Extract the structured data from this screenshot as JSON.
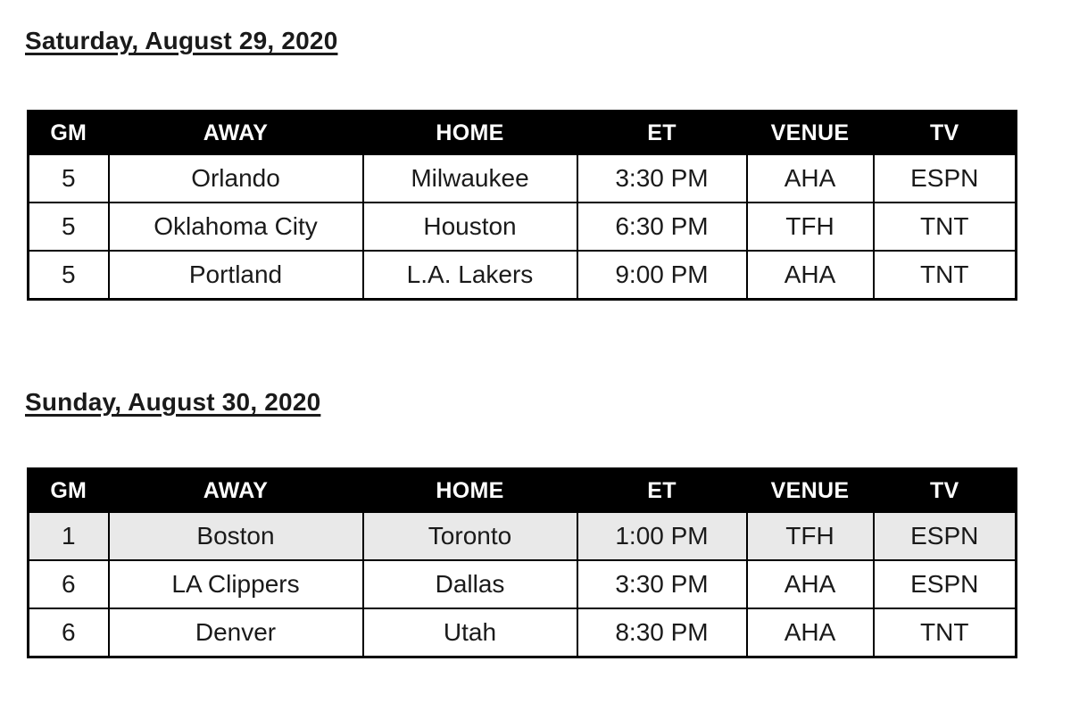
{
  "colors": {
    "page_background": "#ffffff",
    "header_background": "#000000",
    "header_text": "#ffffff",
    "body_text": "#1a1a1a",
    "border": "#000000",
    "highlight_row_background": "#e9e9e9"
  },
  "sections": [
    {
      "heading": "Saturday, August 29, 2020",
      "table": {
        "columns": [
          "GM",
          "AWAY",
          "HOME",
          "ET",
          "VENUE",
          "TV"
        ],
        "rows": [
          {
            "gm": "5",
            "away": "Orlando",
            "home": "Milwaukee",
            "et": "3:30 PM",
            "venue": "AHA",
            "tv": "ESPN",
            "highlight": false
          },
          {
            "gm": "5",
            "away": "Oklahoma City",
            "home": "Houston",
            "et": "6:30 PM",
            "venue": "TFH",
            "tv": "TNT",
            "highlight": false
          },
          {
            "gm": "5",
            "away": "Portland",
            "home": "L.A. Lakers",
            "et": "9:00 PM",
            "venue": "AHA",
            "tv": "TNT",
            "highlight": false
          }
        ]
      }
    },
    {
      "heading": "Sunday, August 30, 2020",
      "table": {
        "columns": [
          "GM",
          "AWAY",
          "HOME",
          "ET",
          "VENUE",
          "TV"
        ],
        "rows": [
          {
            "gm": "1",
            "away": "Boston",
            "home": "Toronto",
            "et": "1:00 PM",
            "venue": "TFH",
            "tv": "ESPN",
            "highlight": true
          },
          {
            "gm": "6",
            "away": "LA Clippers",
            "home": "Dallas",
            "et": "3:30 PM",
            "venue": "AHA",
            "tv": "ESPN",
            "highlight": false
          },
          {
            "gm": "6",
            "away": "Denver",
            "home": "Utah",
            "et": "8:30 PM",
            "venue": "AHA",
            "tv": "TNT",
            "highlight": false
          }
        ]
      }
    }
  ]
}
